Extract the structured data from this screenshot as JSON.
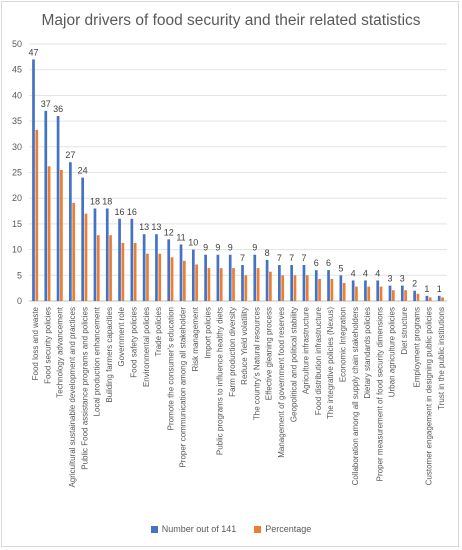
{
  "chart_data": {
    "type": "bar",
    "title": "Major drivers of food security and their related statistics",
    "categories": [
      "Food loss and waste",
      "Food security policies",
      "Technology advancement",
      "Agricultural sustainable development and practices",
      "Public Food assistance programs and policies",
      "Local production enhancement",
      "Building farmers capacities",
      "Government role",
      "Food safety policies",
      "Environmental policies",
      "Trade policies",
      "Promote the consumer's education",
      "Proper communication among all stakeholder",
      "Risk management",
      "Import policies",
      "Public programs to influence healthy diets",
      "Farm production diversity",
      "Reduce Yield volatility",
      "The country's Natural resources",
      "Effective gleaning process",
      "Management of government food reserves",
      "Geopolitical and political stability",
      "Agriculture infrastructure",
      "Food distribution infrastructure",
      "The integrative policies (Nexus)",
      "Economic Integration",
      "Collaboration among all supply chain stakeholders",
      "Dietary standards policies",
      "Proper measurement of food security dimensions",
      "Urban agriculture policies",
      "Diet structure",
      "Employment programs",
      "Customer engagement in designing public policies",
      "Trust in the public institutions"
    ],
    "series": [
      {
        "name": "Number out of 141",
        "color": "#4472c4",
        "values": [
          47,
          37,
          36,
          27,
          24,
          18,
          18,
          16,
          16,
          13,
          13,
          12,
          11,
          10,
          9,
          9,
          9,
          7,
          9,
          8,
          7,
          7,
          7,
          6,
          6,
          5,
          4,
          4,
          4,
          3,
          3,
          2,
          1,
          1
        ]
      },
      {
        "name": "Percentage",
        "color": "#ed7d31",
        "values": [
          33.3,
          26.2,
          25.5,
          19.1,
          17.0,
          12.8,
          12.8,
          11.3,
          11.3,
          9.2,
          9.2,
          8.5,
          7.8,
          7.1,
          6.4,
          6.4,
          6.4,
          5.0,
          6.4,
          5.7,
          5.0,
          5.0,
          5.0,
          4.3,
          4.3,
          3.5,
          2.8,
          2.8,
          2.8,
          2.1,
          2.1,
          1.4,
          0.7,
          0.7
        ]
      }
    ],
    "data_labels": [
      "47",
      "37",
      "36",
      "27",
      "24",
      "18",
      "18",
      "16",
      "16",
      "13",
      "13",
      "12",
      "11",
      "10",
      "9",
      "9",
      "9",
      "7",
      "9",
      "8",
      "7",
      "7",
      "7",
      "6",
      "6",
      "5",
      "4",
      "4",
      "4",
      "3",
      "3",
      "2",
      "1",
      "1"
    ],
    "y_ticks": [
      "0",
      "5",
      "10",
      "15",
      "20",
      "25",
      "30",
      "35",
      "40",
      "45",
      "50"
    ],
    "ylim": [
      0,
      50
    ],
    "grid": true,
    "legend": "bottom"
  }
}
